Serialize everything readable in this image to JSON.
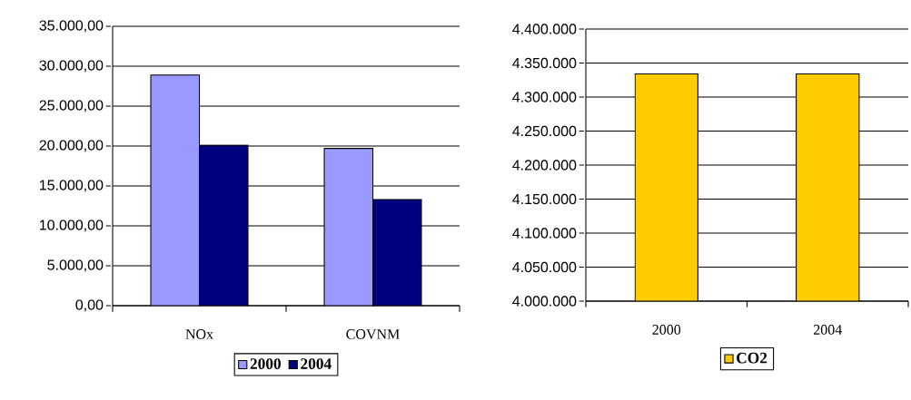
{
  "chart_data": [
    {
      "type": "bar",
      "categories": [
        "NOx",
        "COVNM"
      ],
      "series": [
        {
          "name": "2000",
          "color": "#9999ff",
          "values": [
            28900,
            19700
          ]
        },
        {
          "name": "2004",
          "color": "#000080",
          "values": [
            20100,
            13300
          ]
        }
      ],
      "ylim": [
        0,
        35000
      ],
      "yticks": [
        {
          "value": 0,
          "label": "0,00"
        },
        {
          "value": 5000,
          "label": "5.000,00"
        },
        {
          "value": 10000,
          "label": "10.000,00"
        },
        {
          "value": 15000,
          "label": "15.000,00"
        },
        {
          "value": 20000,
          "label": "20.000,00"
        },
        {
          "value": 25000,
          "label": "25.000,00"
        },
        {
          "value": 30000,
          "label": "30.000,00"
        },
        {
          "value": 35000,
          "label": "35.000,00"
        }
      ],
      "grid": "y",
      "legend": "bottom"
    },
    {
      "type": "bar",
      "categories": [
        "2000",
        "2004"
      ],
      "series": [
        {
          "name": "CO2",
          "color": "#ffcc00",
          "values": [
            4334000,
            4334000
          ]
        }
      ],
      "ylim": [
        4000000,
        4400000
      ],
      "yticks": [
        {
          "value": 4000000,
          "label": "4.000.000"
        },
        {
          "value": 4050000,
          "label": "4.050.000"
        },
        {
          "value": 4100000,
          "label": "4.100.000"
        },
        {
          "value": 4150000,
          "label": "4.150.000"
        },
        {
          "value": 4200000,
          "label": "4.200.000"
        },
        {
          "value": 4250000,
          "label": "4.250.000"
        },
        {
          "value": 4300000,
          "label": "4.300.000"
        },
        {
          "value": 4350000,
          "label": "4.350.000"
        },
        {
          "value": 4400000,
          "label": "4.400.000"
        }
      ],
      "grid": "y",
      "legend": "bottom"
    }
  ]
}
